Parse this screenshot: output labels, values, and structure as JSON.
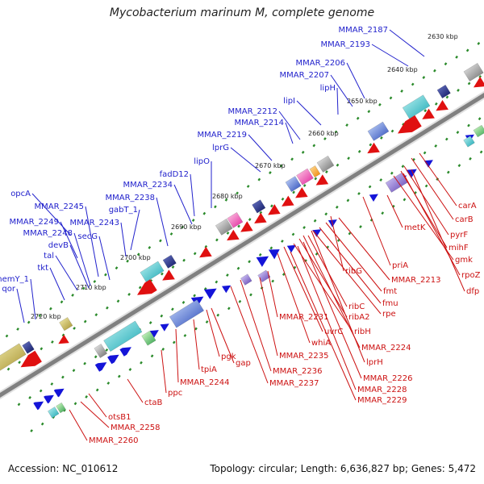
{
  "title": "Mycobacterium marinum M, complete genome",
  "footer": {
    "accession": "Accession: NC_010612",
    "summary": "Topology: circular; Length: 6,636,827 bp; Genes: 5,472"
  },
  "colors": {
    "forward_label": "#2222cc",
    "reverse_label": "#cc1111",
    "backbone": "#808080",
    "tick_dots": "#2a8a2a",
    "forward_arrow": "#1414d8",
    "reverse_arrow": "#e01010"
  },
  "scale_labels": [
    "2630 kbp",
    "2640 kbp",
    "2650 kbp",
    "2660 kbp",
    "2670 kbp",
    "2680 kbp",
    "2690 kbp",
    "2700 kbp",
    "2710 kbp",
    "2720 kbp"
  ],
  "forward_genes": [
    "MMAR_2187",
    "MMAR_2193",
    "MMAR_2206",
    "MMAR_2207",
    "lipH",
    "lipI",
    "MMAR_2212",
    "MMAR_2214",
    "MMAR_2219",
    "lprG",
    "lipO",
    "fadD12",
    "MMAR_2234",
    "MMAR_2238",
    "gabT_1",
    "MMAR_2243",
    "secG",
    "MMAR_2245",
    "opcA",
    "MMAR_2249",
    "MMAR_2248",
    "devB",
    "tal",
    "tkt",
    "hemY_1",
    "qor"
  ],
  "reverse_genes": [
    "carA",
    "carB",
    "metK",
    "pyrF",
    "mihF",
    "gmk",
    "rpoZ",
    "dfp",
    "priA",
    "ribG",
    "MMAR_2213",
    "fmt",
    "fmu",
    "rpe",
    "ribC",
    "ribA2",
    "ribH",
    "uvrC",
    "MMAR_2231",
    "whiA",
    "MMAR_2224",
    "lprH",
    "MMAR_2235",
    "MMAR_2226",
    "MMAR_2228",
    "MMAR_2229",
    "MMAR_2236",
    "MMAR_2237",
    "pgk",
    "gap",
    "tpiA",
    "MMAR_2244",
    "ppc",
    "ctaB",
    "otsB1",
    "MMAR_2258",
    "MMAR_2260"
  ]
}
